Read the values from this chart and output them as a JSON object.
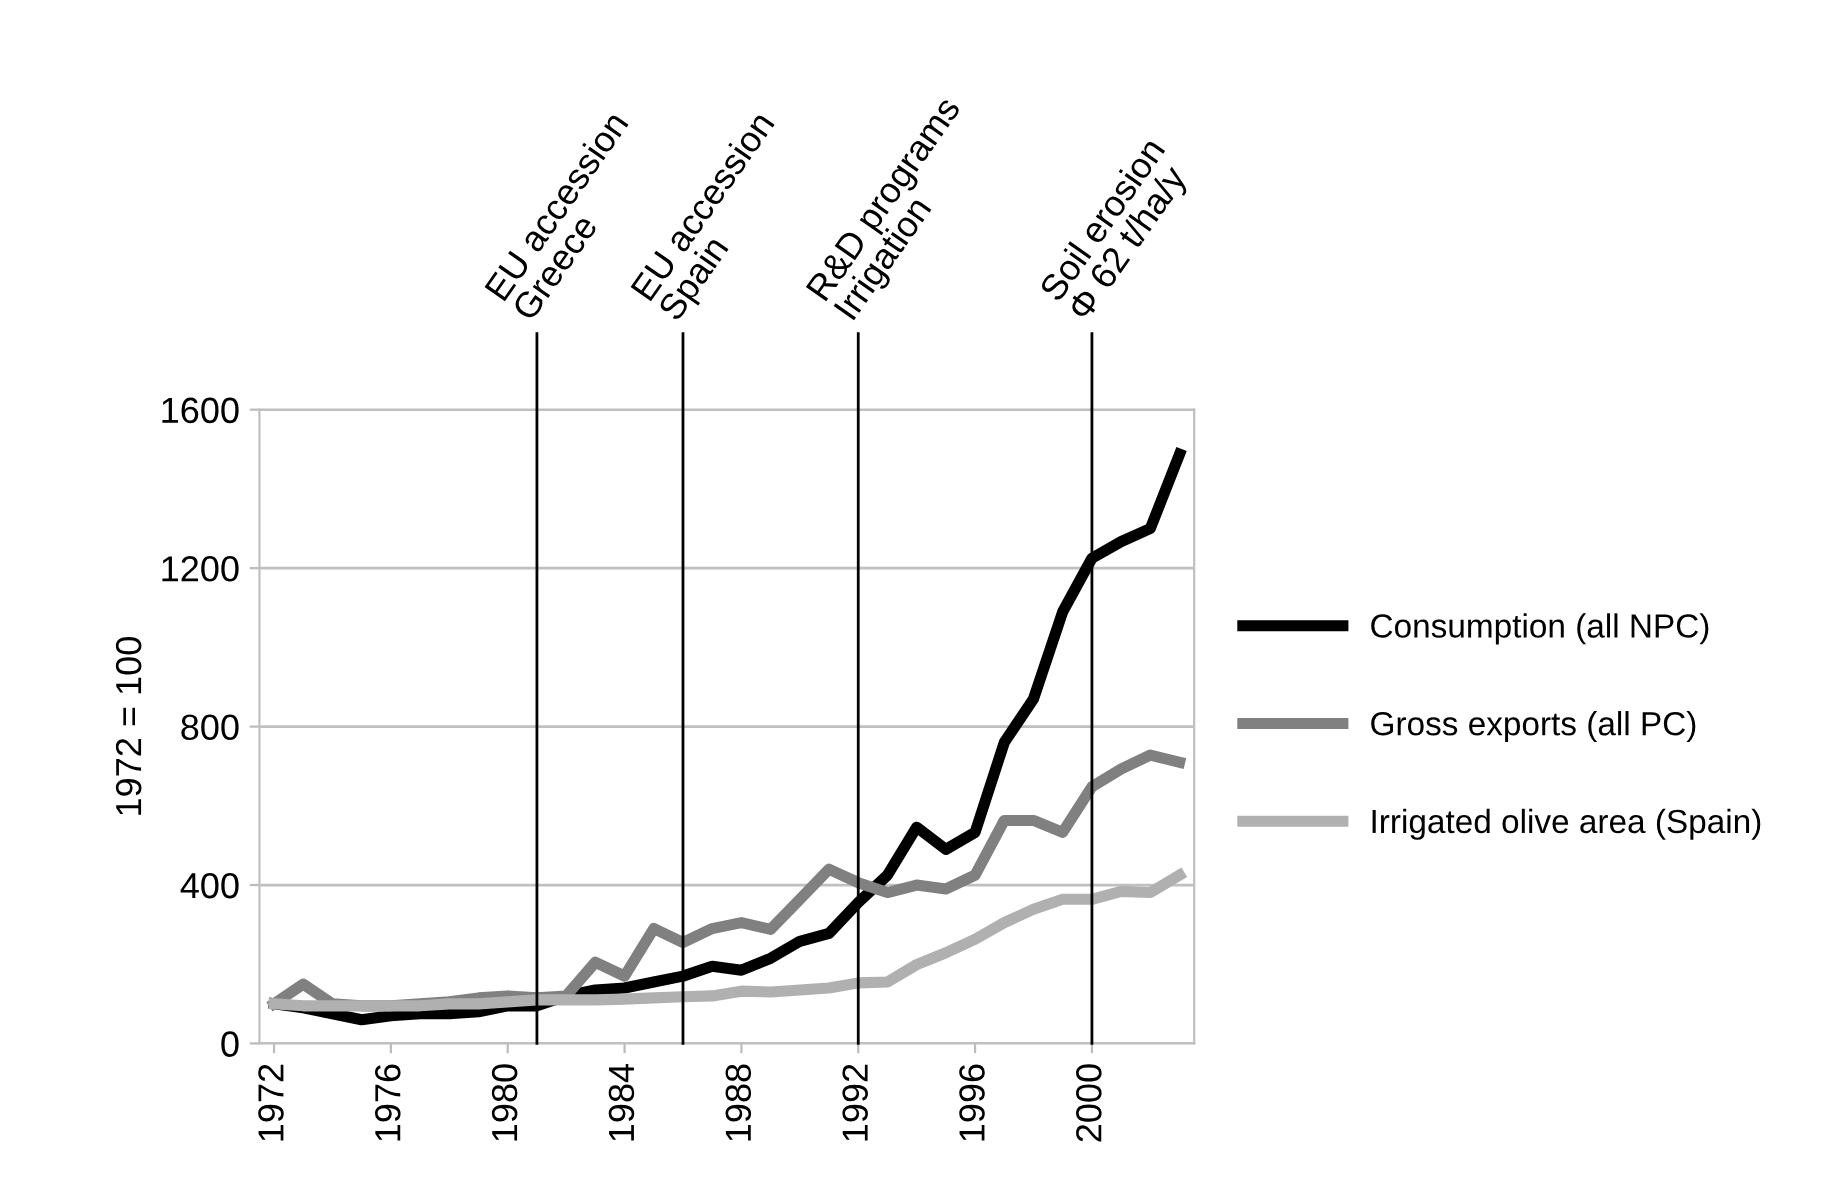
{
  "chart_data": {
    "type": "line",
    "ylabel": "1972 = 100",
    "x": [
      1972,
      1973,
      1974,
      1975,
      1976,
      1977,
      1978,
      1979,
      1980,
      1981,
      1982,
      1983,
      1984,
      1985,
      1986,
      1987,
      1988,
      1989,
      1990,
      1991,
      1992,
      1993,
      1994,
      1995,
      1996,
      1997,
      1998,
      1999,
      2000,
      2001,
      2002,
      2003
    ],
    "series": [
      {
        "name": "Consumption (all NPC)",
        "color": "#000000",
        "values": [
          100,
          90,
          75,
          60,
          70,
          75,
          75,
          80,
          95,
          95,
          120,
          135,
          140,
          155,
          170,
          195,
          185,
          215,
          258,
          278,
          356,
          425,
          546,
          490,
          533,
          760,
          870,
          1090,
          1225,
          1267,
          1300,
          1488
        ]
      },
      {
        "name": "Gross exports (all PC)",
        "color": "#808080",
        "values": [
          100,
          150,
          100,
          95,
          95,
          100,
          105,
          115,
          120,
          115,
          120,
          205,
          170,
          290,
          255,
          290,
          305,
          288,
          364,
          440,
          406,
          381,
          400,
          390,
          425,
          563,
          563,
          533,
          648,
          693,
          728,
          710
        ]
      },
      {
        "name": "Irrigated olive area (Spain)",
        "color": "#b0b0b0",
        "values": [
          100,
          95,
          95,
          95,
          95,
          95,
          100,
          100,
          105,
          110,
          110,
          110,
          112,
          115,
          118,
          120,
          132,
          130,
          135,
          140,
          153,
          155,
          199,
          229,
          263,
          305,
          339,
          364,
          364,
          384,
          381,
          425
        ]
      }
    ],
    "xlim": [
      1971.5,
      2003.5
    ],
    "xticks": [
      1972,
      1976,
      1980,
      1984,
      1988,
      1992,
      1996,
      2000
    ],
    "ylim": [
      0,
      1600
    ],
    "yticks": [
      0,
      400,
      800,
      1200,
      1600
    ],
    "ref_lines": [
      {
        "axis": "x",
        "value": 1981,
        "label": "EU accession\nGreece",
        "color": "#000000"
      },
      {
        "axis": "x",
        "value": 1986,
        "label": "EU accession\nSpain",
        "color": "#000000"
      },
      {
        "axis": "x",
        "value": 1992,
        "label": "R&D programs\nIrrigation",
        "color": "#000000"
      },
      {
        "axis": "x",
        "value": 2000,
        "label": "Soil erosion\nΦ 62 t/ha/y",
        "color": "#000000"
      }
    ],
    "grid": "y",
    "legend": "right",
    "marker": "none",
    "line_style": "solid"
  }
}
